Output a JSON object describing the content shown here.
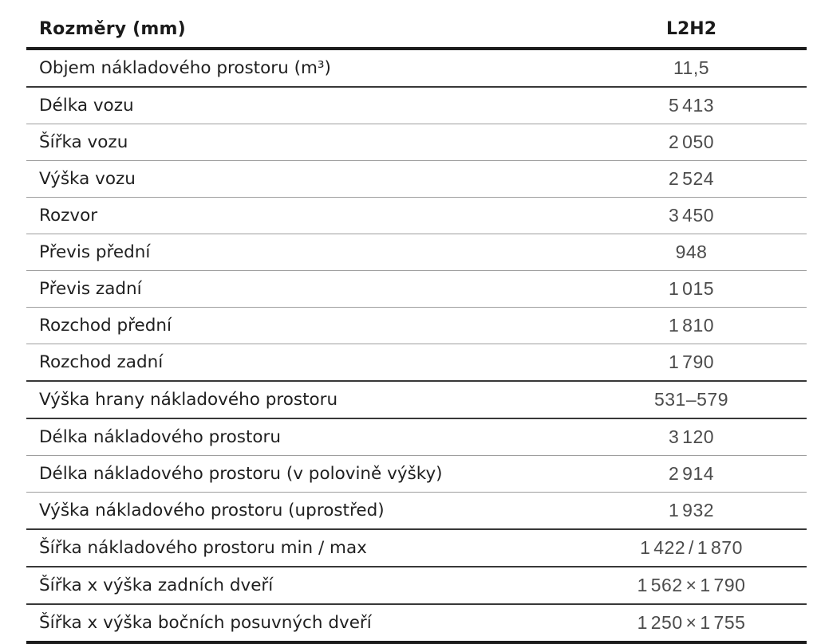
{
  "page": {
    "background": "#ffffff",
    "description": "Vehicle dimensions specification table (Czech)"
  },
  "table": {
    "header": {
      "label": "Rozměry (mm)",
      "value": "L2H2"
    },
    "rows": [
      {
        "label": "Objem nákladového prostoru (m³)",
        "value": "11,5",
        "rule": "dark"
      },
      {
        "label": "Délka vozu",
        "value": "5 413",
        "rule": "thin"
      },
      {
        "label": "Šířka vozu",
        "value": "2 050",
        "rule": "thin"
      },
      {
        "label": "Výška vozu",
        "value": "2 524",
        "rule": "thin"
      },
      {
        "label": "Rozvor",
        "value": "3 450",
        "rule": "thin"
      },
      {
        "label": "Převis přední",
        "value": "948",
        "rule": "thin"
      },
      {
        "label": "Převis zadní",
        "value": "1 015",
        "rule": "thin"
      },
      {
        "label": "Rozchod přední",
        "value": "1 810",
        "rule": "thin"
      },
      {
        "label": "Rozchod zadní",
        "value": "1 790",
        "rule": "dark"
      },
      {
        "label": "Výška hrany nákladového prostoru",
        "value": "531–579",
        "rule": "dark"
      },
      {
        "label": "Délka nákladového prostoru",
        "value": "3 120",
        "rule": "thin"
      },
      {
        "label": "Délka nákladového prostoru (v polovině výšky)",
        "value": "2 914",
        "rule": "thin"
      },
      {
        "label": "Výška nákladového prostoru (uprostřed)",
        "value": "1 932",
        "rule": "dark"
      },
      {
        "label": "Šířka nákladového prostoru min / max",
        "value": "1 422 / 1 870",
        "rule": "dark"
      },
      {
        "label": "Šířka x výška zadních dveří",
        "value": "1 562 × 1 790",
        "rule": "dark"
      },
      {
        "label": "Šířka x výška bočních posuvných dveří",
        "value": "1 250 × 1 755",
        "rule": "thick"
      }
    ]
  },
  "colors": {
    "label_text": "#1f1f1f",
    "value_text": "#4c4c4c",
    "rule_thin": "#9e9e9e",
    "rule_dark": "#383838",
    "rule_thick": "#1c1c1c"
  }
}
